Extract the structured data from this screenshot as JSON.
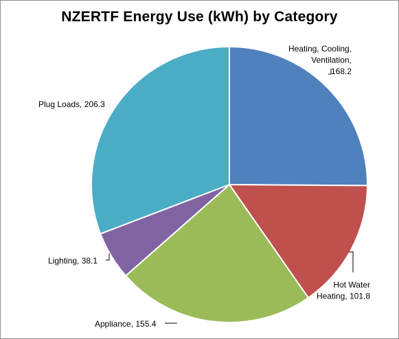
{
  "chart_data": {
    "type": "pie",
    "title": "NZERTF Energy Use (kWh) by Category",
    "slices": [
      {
        "category": "Heating, Cooling, Ventilation",
        "value": 168.2,
        "label_lines": [
          "Heating, Cooling,",
          "Ventilation,",
          "168.2"
        ],
        "color": "#4f81bd"
      },
      {
        "category": "Hot Water Heating",
        "value": 101.8,
        "label_lines": [
          "Hot Water",
          "Heating, 101.8"
        ],
        "color": "#c0504d"
      },
      {
        "category": "Appliance",
        "value": 155.4,
        "label_lines": [
          "Appliance, 155.4"
        ],
        "color": "#9bbb59"
      },
      {
        "category": "Lighting",
        "value": 38.1,
        "label_lines": [
          "Lighting, 38.1"
        ],
        "color": "#8064a2"
      },
      {
        "category": "Plug Loads",
        "value": 206.3,
        "label_lines": [
          "Plug Loads, 206.3"
        ],
        "color": "#4bacc6"
      }
    ],
    "start_angle": "12 o'clock",
    "direction": "clockwise",
    "legend": "none"
  }
}
